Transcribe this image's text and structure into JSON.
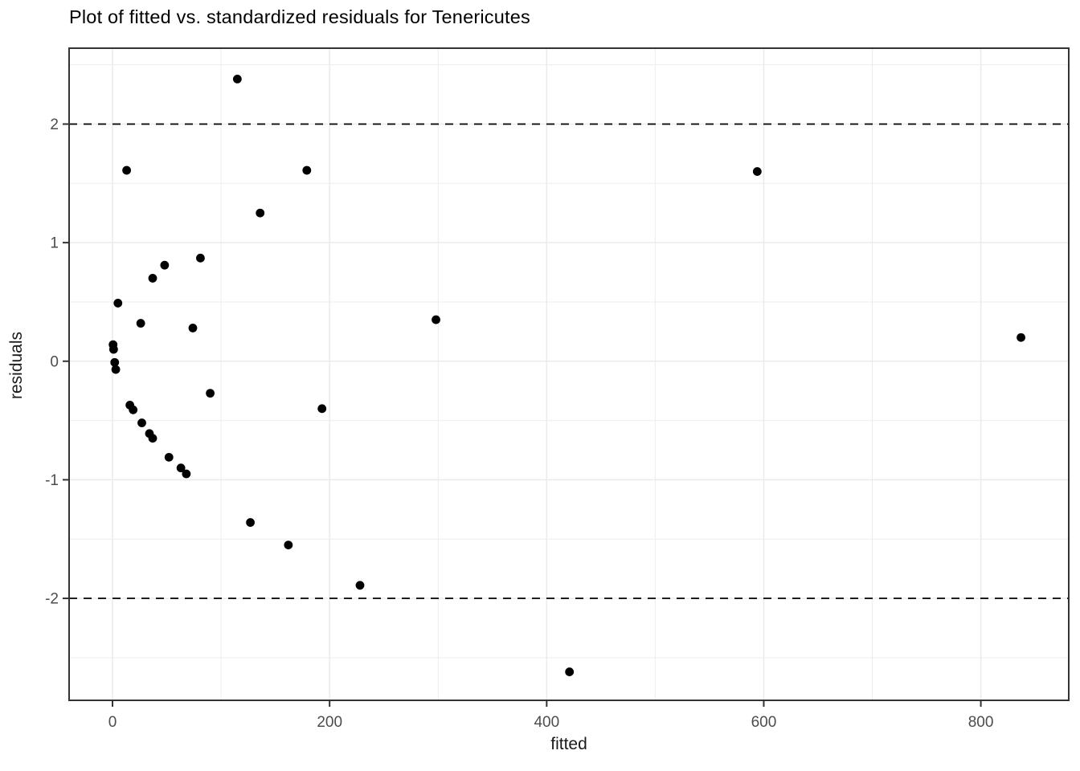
{
  "title": "Plot of fitted vs. standardized residuals for Tenericutes",
  "chart_data": {
    "type": "scatter",
    "title": "Plot of fitted vs. standardized residuals for Tenericutes",
    "xlabel": "fitted",
    "ylabel": "residuals",
    "xlim": [
      -40,
      881
    ],
    "ylim": [
      -2.86,
      2.64
    ],
    "x_ticks": [
      0,
      200,
      400,
      600,
      800
    ],
    "x_tick_labels": [
      "0",
      "200",
      "400",
      "600",
      "800"
    ],
    "x_minor_ticks": [
      100,
      300,
      500,
      700
    ],
    "y_ticks": [
      -2,
      -1,
      0,
      1,
      2
    ],
    "y_tick_labels": [
      "-2",
      "-1",
      "0",
      "1",
      "2"
    ],
    "y_minor_ticks": [
      -2.5,
      -1.5,
      -0.5,
      0.5,
      1.5,
      2.5
    ],
    "reference_lines_y": [
      2,
      -2
    ],
    "reference_line_style": "dashed",
    "grid": true,
    "legend": false,
    "points": [
      [
        115,
        2.38
      ],
      [
        13,
        1.61
      ],
      [
        179,
        1.61
      ],
      [
        594,
        1.6
      ],
      [
        136,
        1.25
      ],
      [
        81,
        0.87
      ],
      [
        48,
        0.81
      ],
      [
        37,
        0.7
      ],
      [
        5,
        0.49
      ],
      [
        298,
        0.35
      ],
      [
        26,
        0.32
      ],
      [
        74,
        0.28
      ],
      [
        837,
        0.2
      ],
      [
        0.5,
        0.14
      ],
      [
        1,
        0.1
      ],
      [
        2,
        -0.01
      ],
      [
        3,
        -0.07
      ],
      [
        90,
        -0.27
      ],
      [
        16,
        -0.37
      ],
      [
        193,
        -0.4
      ],
      [
        19,
        -0.41
      ],
      [
        27,
        -0.52
      ],
      [
        34,
        -0.61
      ],
      [
        37,
        -0.65
      ],
      [
        52,
        -0.81
      ],
      [
        63,
        -0.9
      ],
      [
        68,
        -0.95
      ],
      [
        127,
        -1.36
      ],
      [
        162,
        -1.55
      ],
      [
        228,
        -1.89
      ],
      [
        421,
        -2.62
      ]
    ]
  },
  "colors": {
    "point": "#000000",
    "reference_line": "#000000",
    "grid_major": "#ebebeb",
    "grid_minor": "#ededed",
    "panel_border": "#333333",
    "panel_background": "#ffffff",
    "tick_mark": "#333333",
    "axis_text": "#4d4d4d",
    "title_text": "#000000"
  }
}
